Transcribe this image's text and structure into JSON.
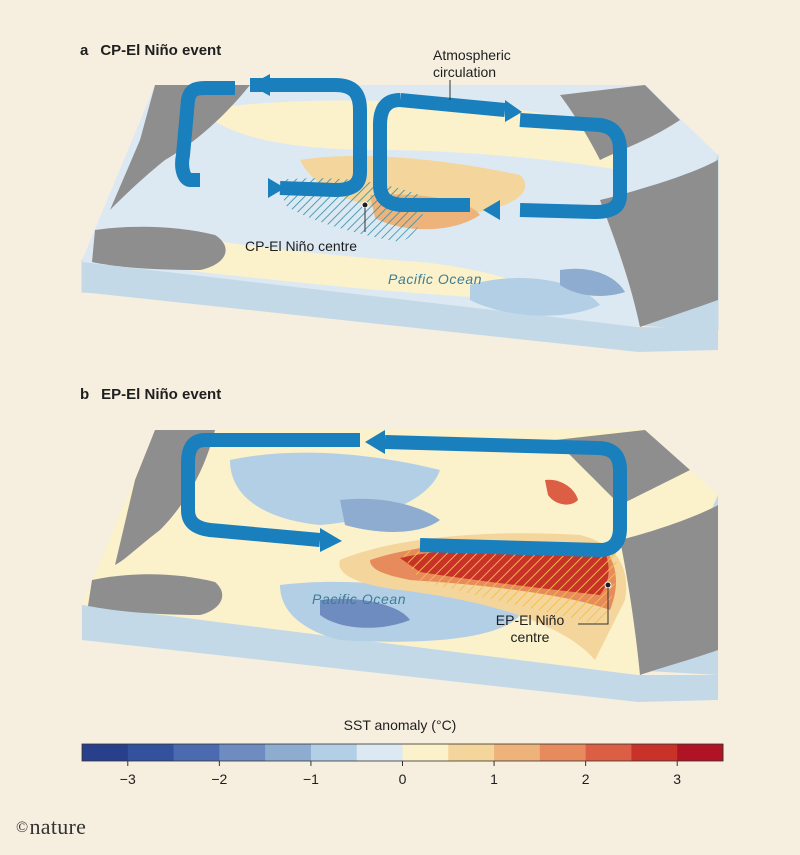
{
  "panels": {
    "a": {
      "letter": "a",
      "title": "CP-El Niño event",
      "centre_label": "CP-El Niño centre",
      "ocean_label": "Pacific Ocean",
      "circulation_label": "Atmospheric circulation"
    },
    "b": {
      "letter": "b",
      "title": "EP-El Niño event",
      "centre_label_line1": "EP-El Niño",
      "centre_label_line2": "centre",
      "ocean_label": "Pacific Ocean"
    }
  },
  "colorbar": {
    "title": "SST anomaly (°C)",
    "range": [
      -3.5,
      3.5
    ],
    "ticks": [
      "−3",
      "−2",
      "−1",
      "0",
      "1",
      "2",
      "3"
    ],
    "colors": [
      "#283f8c",
      "#33529d",
      "#4c6aaf",
      "#6f8cc0",
      "#8eacd0",
      "#b3cfe6",
      "#dde9f2",
      "#fbf1cb",
      "#f4d59b",
      "#eeb37a",
      "#e78a5c",
      "#dc5e44",
      "#c83228",
      "#b01424"
    ]
  },
  "colors": {
    "arrow": "#1a7fbd",
    "land": "#8e8e8e",
    "base_side": "#c4d9e7"
  },
  "publisher": "nature"
}
